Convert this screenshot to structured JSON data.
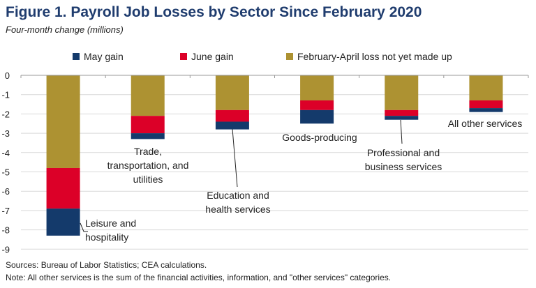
{
  "chart_data": {
    "type": "bar",
    "stacked": true,
    "title": "Figure 1. Payroll Job Losses by Sector Since February 2020",
    "subtitle": "Four-month change (millions)",
    "categories": [
      "Leisure and hospitality",
      "Trade, transportation, and utilities",
      "Education and health services",
      "Goods-producing",
      "Professional and business services",
      "All other services"
    ],
    "category_label_lines": [
      [
        "Leisure and",
        "hospitality"
      ],
      [
        "Trade,",
        "transportation, and",
        "utilities"
      ],
      [
        "Education and",
        "health services"
      ],
      [
        "Goods-producing"
      ],
      [
        "Professional and",
        "business services"
      ],
      [
        "All other services"
      ]
    ],
    "series": [
      {
        "name": "February-April loss not yet made up",
        "color": "#ad9232",
        "values": [
          -4.8,
          -2.1,
          -1.8,
          -1.3,
          -1.8,
          -1.3
        ]
      },
      {
        "name": "June gain",
        "color": "#dc0028",
        "values": [
          -2.1,
          -0.9,
          -0.6,
          -0.5,
          -0.3,
          -0.4
        ]
      },
      {
        "name": "May gain",
        "color": "#143a6b",
        "values": [
          -1.4,
          -0.3,
          -0.4,
          -0.7,
          -0.2,
          -0.2
        ]
      }
    ],
    "legend_order": [
      "May gain",
      "June gain",
      "February-April loss not yet made up"
    ],
    "legend_position": "top",
    "ylim": [
      -9,
      0
    ],
    "yticks": [
      "0",
      "-1",
      "-2",
      "-3",
      "-4",
      "-5",
      "-6",
      "-7",
      "-8",
      "-9"
    ],
    "grid": true,
    "xlabel": "",
    "ylabel": ""
  },
  "notes": {
    "sources": "Sources: Bureau of Labor Statistics; CEA calculations.",
    "note": "Note: All other services is the sum of the financial activities, information, and \"other services\" categories."
  }
}
